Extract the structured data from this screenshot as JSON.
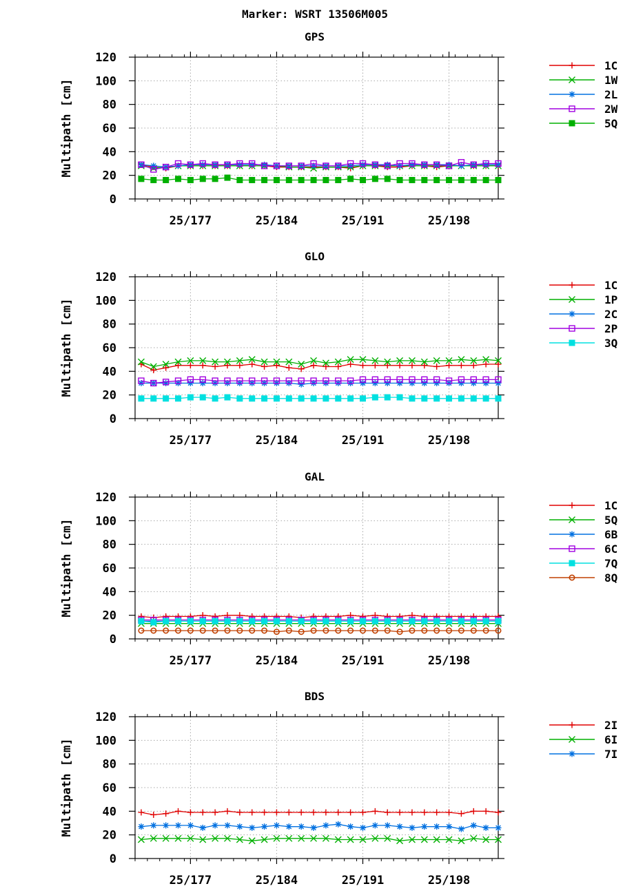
{
  "title": "Marker: WSRT 13506M005",
  "colors": {
    "1C": "#e00000",
    "1W": "#00b000",
    "1P": "#00b000",
    "5Q": "#00b000",
    "2L": "#0070e0",
    "2C": "#0070e0",
    "6B": "#0070e0",
    "2W": "#a000e0",
    "2P": "#a000e0",
    "6C": "#a000e0",
    "3Q": "#00e0e0",
    "7Q": "#00e0e0",
    "8Q": "#c04000",
    "2I": "#e00000",
    "6I": "#00b000",
    "7I": "#0070e0"
  },
  "chart_data": [
    {
      "type": "line",
      "title": "GPS",
      "ylabel": "Multipath [cm]",
      "xlabel": "",
      "ylim": [
        0,
        120
      ],
      "yticks": [
        0,
        20,
        40,
        60,
        80,
        100,
        120
      ],
      "xlim": [
        172,
        201.5
      ],
      "xticks": [
        {
          "value": 176.5,
          "label": "25/177"
        },
        {
          "value": 183.5,
          "label": "25/184"
        },
        {
          "value": 190.5,
          "label": "25/191"
        },
        {
          "value": 197.5,
          "label": "25/198"
        }
      ],
      "x": [
        172.5,
        173.5,
        174.5,
        175.5,
        176.5,
        177.5,
        178.5,
        179.5,
        180.5,
        181.5,
        182.5,
        183.5,
        184.5,
        185.5,
        186.5,
        187.5,
        188.5,
        189.5,
        190.5,
        191.5,
        192.5,
        193.5,
        194.5,
        195.5,
        196.5,
        197.5,
        198.5,
        199.5,
        200.5,
        201.5
      ],
      "grid": true,
      "legend_position": "right",
      "series": [
        {
          "name": "1C",
          "marker": "plus",
          "values": [
            29,
            27,
            26,
            28,
            28,
            28,
            28,
            28,
            28,
            28,
            28,
            27,
            27,
            27,
            27,
            27,
            27,
            26,
            28,
            28,
            27,
            27,
            28,
            28,
            27,
            28,
            28,
            28,
            28,
            28
          ]
        },
        {
          "name": "1W",
          "marker": "x",
          "values": [
            28,
            26,
            27,
            28,
            28,
            28,
            28,
            28,
            28,
            28,
            28,
            28,
            27,
            27,
            26,
            27,
            27,
            27,
            28,
            28,
            28,
            28,
            28,
            28,
            28,
            28,
            28,
            28,
            28,
            28
          ]
        },
        {
          "name": "2L",
          "marker": "star",
          "values": [
            29,
            28,
            27,
            28,
            29,
            29,
            29,
            29,
            29,
            29,
            29,
            28,
            28,
            28,
            28,
            28,
            28,
            28,
            29,
            29,
            29,
            28,
            29,
            29,
            29,
            29,
            28,
            29,
            29,
            29
          ]
        },
        {
          "name": "2W",
          "marker": "square",
          "values": [
            29,
            25,
            27,
            30,
            29,
            30,
            29,
            29,
            30,
            30,
            28,
            28,
            28,
            28,
            30,
            28,
            28,
            30,
            30,
            29,
            28,
            30,
            30,
            29,
            29,
            28,
            31,
            29,
            30,
            30
          ]
        },
        {
          "name": "5Q",
          "marker": "filled-square",
          "values": [
            17,
            16,
            16,
            17,
            16,
            17,
            17,
            18,
            16,
            16,
            16,
            16,
            16,
            16,
            16,
            16,
            16,
            17,
            16,
            17,
            17,
            16,
            16,
            16,
            16,
            16,
            16,
            16,
            16,
            16
          ]
        }
      ]
    },
    {
      "type": "line",
      "title": "GLO",
      "ylabel": "Multipath [cm]",
      "xlabel": "",
      "ylim": [
        0,
        120
      ],
      "yticks": [
        0,
        20,
        40,
        60,
        80,
        100,
        120
      ],
      "xlim": [
        172,
        201.5
      ],
      "xticks": [
        {
          "value": 176.5,
          "label": "25/177"
        },
        {
          "value": 183.5,
          "label": "25/184"
        },
        {
          "value": 190.5,
          "label": "25/191"
        },
        {
          "value": 197.5,
          "label": "25/198"
        }
      ],
      "x": [
        172.5,
        173.5,
        174.5,
        175.5,
        176.5,
        177.5,
        178.5,
        179.5,
        180.5,
        181.5,
        182.5,
        183.5,
        184.5,
        185.5,
        186.5,
        187.5,
        188.5,
        189.5,
        190.5,
        191.5,
        192.5,
        193.5,
        194.5,
        195.5,
        196.5,
        197.5,
        198.5,
        199.5,
        200.5,
        201.5
      ],
      "grid": true,
      "legend_position": "right",
      "series": [
        {
          "name": "1C",
          "marker": "plus",
          "values": [
            46,
            41,
            43,
            45,
            45,
            45,
            44,
            45,
            45,
            46,
            44,
            45,
            43,
            42,
            45,
            44,
            44,
            46,
            45,
            45,
            45,
            45,
            45,
            45,
            44,
            45,
            45,
            45,
            46,
            46
          ]
        },
        {
          "name": "1P",
          "marker": "x",
          "values": [
            48,
            44,
            46,
            48,
            49,
            49,
            48,
            48,
            49,
            50,
            48,
            48,
            48,
            46,
            49,
            47,
            48,
            50,
            50,
            49,
            48,
            49,
            49,
            48,
            49,
            49,
            50,
            49,
            50,
            49
          ]
        },
        {
          "name": "2C",
          "marker": "star",
          "values": [
            30,
            30,
            30,
            30,
            30,
            30,
            30,
            30,
            30,
            30,
            30,
            30,
            30,
            29,
            30,
            30,
            30,
            30,
            30,
            30,
            30,
            30,
            30,
            30,
            30,
            30,
            30,
            30,
            30,
            30
          ]
        },
        {
          "name": "2P",
          "marker": "square",
          "values": [
            32,
            30,
            31,
            32,
            33,
            33,
            32,
            32,
            32,
            32,
            32,
            32,
            32,
            32,
            32,
            32,
            32,
            32,
            33,
            33,
            33,
            33,
            33,
            33,
            33,
            32,
            33,
            33,
            33,
            33
          ]
        },
        {
          "name": "3Q",
          "marker": "filled-square",
          "values": [
            17,
            17,
            17,
            17,
            18,
            18,
            17,
            18,
            17,
            17,
            17,
            17,
            17,
            17,
            17,
            17,
            17,
            17,
            17,
            18,
            18,
            18,
            17,
            17,
            17,
            17,
            17,
            17,
            17,
            17
          ]
        }
      ]
    },
    {
      "type": "line",
      "title": "GAL",
      "ylabel": "Multipath [cm]",
      "xlabel": "",
      "ylim": [
        0,
        120
      ],
      "yticks": [
        0,
        20,
        40,
        60,
        80,
        100,
        120
      ],
      "xlim": [
        172,
        201.5
      ],
      "xticks": [
        {
          "value": 176.5,
          "label": "25/177"
        },
        {
          "value": 183.5,
          "label": "25/184"
        },
        {
          "value": 190.5,
          "label": "25/191"
        },
        {
          "value": 197.5,
          "label": "25/198"
        }
      ],
      "x": [
        172.5,
        173.5,
        174.5,
        175.5,
        176.5,
        177.5,
        178.5,
        179.5,
        180.5,
        181.5,
        182.5,
        183.5,
        184.5,
        185.5,
        186.5,
        187.5,
        188.5,
        189.5,
        190.5,
        191.5,
        192.5,
        193.5,
        194.5,
        195.5,
        196.5,
        197.5,
        198.5,
        199.5,
        200.5,
        201.5
      ],
      "grid": true,
      "legend_position": "right",
      "series": [
        {
          "name": "1C",
          "marker": "plus",
          "values": [
            19,
            18,
            19,
            19,
            19,
            20,
            19,
            20,
            20,
            19,
            19,
            19,
            19,
            18,
            19,
            19,
            19,
            20,
            19,
            20,
            19,
            19,
            20,
            19,
            19,
            19,
            19,
            19,
            19,
            19
          ]
        },
        {
          "name": "5Q",
          "marker": "x",
          "values": [
            13,
            13,
            13,
            13,
            13,
            13,
            13,
            13,
            13,
            13,
            13,
            13,
            13,
            13,
            13,
            13,
            13,
            13,
            13,
            13,
            13,
            13,
            13,
            13,
            13,
            13,
            13,
            13,
            13,
            13
          ]
        },
        {
          "name": "6B",
          "marker": "star",
          "values": [
            15,
            15,
            15,
            15,
            15,
            15,
            15,
            15,
            15,
            15,
            15,
            15,
            15,
            15,
            15,
            15,
            15,
            15,
            15,
            15,
            15,
            15,
            15,
            15,
            15,
            15,
            15,
            15,
            15,
            15
          ]
        },
        {
          "name": "6C",
          "marker": "square",
          "values": [
            16,
            16,
            16,
            16,
            16,
            16,
            16,
            16,
            16,
            16,
            16,
            16,
            16,
            16,
            16,
            16,
            16,
            16,
            16,
            16,
            16,
            16,
            16,
            16,
            16,
            16,
            16,
            16,
            16,
            16
          ]
        },
        {
          "name": "7Q",
          "marker": "filled-square",
          "values": [
            15,
            14,
            15,
            15,
            15,
            15,
            15,
            15,
            15,
            15,
            15,
            15,
            15,
            15,
            15,
            15,
            15,
            15,
            15,
            15,
            15,
            15,
            15,
            15,
            15,
            15,
            15,
            15,
            15,
            15
          ]
        },
        {
          "name": "8Q",
          "marker": "circle",
          "values": [
            7,
            7,
            7,
            7,
            7,
            7,
            7,
            7,
            7,
            7,
            7,
            6,
            7,
            6,
            7,
            7,
            7,
            7,
            7,
            7,
            7,
            6,
            7,
            7,
            7,
            7,
            7,
            7,
            7,
            7
          ]
        }
      ]
    },
    {
      "type": "line",
      "title": "BDS",
      "ylabel": "Multipath [cm]",
      "xlabel": "",
      "ylim": [
        0,
        120
      ],
      "yticks": [
        0,
        20,
        40,
        60,
        80,
        100,
        120
      ],
      "xlim": [
        172,
        201.5
      ],
      "xticks": [
        {
          "value": 176.5,
          "label": "25/177"
        },
        {
          "value": 183.5,
          "label": "25/184"
        },
        {
          "value": 190.5,
          "label": "25/191"
        },
        {
          "value": 197.5,
          "label": "25/198"
        }
      ],
      "x": [
        172.5,
        173.5,
        174.5,
        175.5,
        176.5,
        177.5,
        178.5,
        179.5,
        180.5,
        181.5,
        182.5,
        183.5,
        184.5,
        185.5,
        186.5,
        187.5,
        188.5,
        189.5,
        190.5,
        191.5,
        192.5,
        193.5,
        194.5,
        195.5,
        196.5,
        197.5,
        198.5,
        199.5,
        200.5,
        201.5
      ],
      "grid": true,
      "legend_position": "right",
      "series": [
        {
          "name": "2I",
          "marker": "plus",
          "values": [
            39,
            37,
            38,
            40,
            39,
            39,
            39,
            40,
            39,
            39,
            39,
            39,
            39,
            39,
            39,
            39,
            39,
            39,
            39,
            40,
            39,
            39,
            39,
            39,
            39,
            39,
            38,
            40,
            40,
            39
          ]
        },
        {
          "name": "6I",
          "marker": "x",
          "values": [
            16,
            17,
            17,
            17,
            17,
            16,
            17,
            17,
            16,
            15,
            16,
            17,
            17,
            17,
            17,
            17,
            16,
            16,
            16,
            17,
            17,
            15,
            16,
            16,
            16,
            16,
            15,
            17,
            16,
            16
          ]
        },
        {
          "name": "7I",
          "marker": "star",
          "values": [
            27,
            28,
            28,
            28,
            28,
            26,
            28,
            28,
            27,
            26,
            27,
            28,
            27,
            27,
            26,
            28,
            29,
            27,
            26,
            28,
            28,
            27,
            26,
            27,
            27,
            27,
            25,
            28,
            26,
            26
          ]
        }
      ]
    }
  ]
}
